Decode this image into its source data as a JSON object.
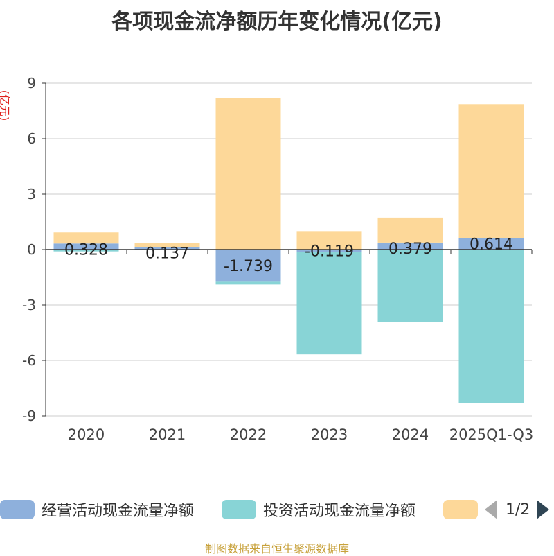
{
  "title": "各项现金流净额历年变化情况(亿元)",
  "y_unit": "(亿元)",
  "source": "制图数据来自恒生聚源数据库",
  "pager": {
    "text": "1/2"
  },
  "colors": {
    "operating": "#8eb0dc",
    "investing": "#88d4d6",
    "financing": "#fdd899",
    "grid": "#cccccc",
    "axis": "#333333"
  },
  "chart_data": {
    "type": "bar",
    "stacked": true,
    "categories": [
      "2020",
      "2021",
      "2022",
      "2023",
      "2024",
      "2025Q1-Q3"
    ],
    "ylim": [
      -9,
      9
    ],
    "yticks": [
      9,
      6,
      3,
      0,
      -3,
      -6,
      -9
    ],
    "grid": true,
    "legend_position": "bottom",
    "series": [
      {
        "name": "经营活动现金流量净额",
        "values": [
          0.328,
          0.137,
          -1.739,
          -0.119,
          0.379,
          0.614
        ],
        "labels": [
          "0.328",
          "0.137",
          "-1.739",
          "-0.119",
          "0.379",
          "0.614"
        ]
      },
      {
        "name": "投资活动现金流量净额",
        "values": [
          -0.1,
          -0.03,
          -0.15,
          -5.55,
          -3.9,
          -8.3
        ]
      },
      {
        "name": "",
        "values": [
          0.6,
          0.2,
          8.2,
          1.0,
          1.35,
          7.25
        ]
      }
    ]
  }
}
